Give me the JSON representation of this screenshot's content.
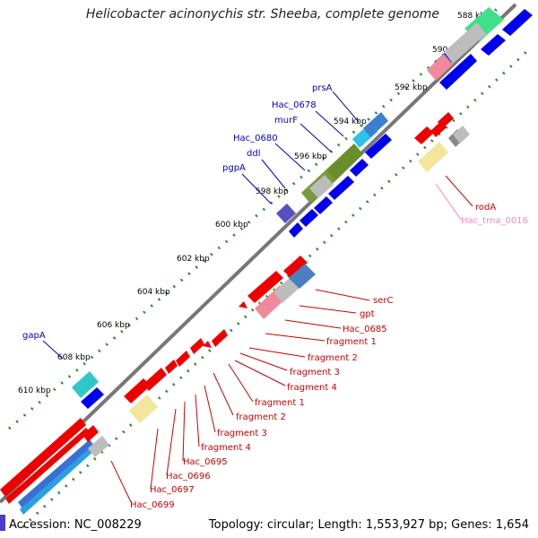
{
  "title": "Helicobacter acinonychis str. Sheeba, complete genome",
  "footer": {
    "accession": "Accession: NC_008229",
    "topology": "Topology: circular; Length: 1,553,927 bp; Genes: 1,654"
  },
  "ticks": [
    "588 kbp",
    "590 kbp",
    "592 kbp",
    "594 kbp",
    "596 kbp",
    "598 kbp",
    "600 kbp",
    "602 kbp",
    "604 kbp",
    "606 kbp",
    "608 kbp",
    "610 kbp"
  ],
  "forward_labels": [
    "prsA",
    "Hac_0678",
    "murF",
    "Hac_0680",
    "ddl",
    "pgpA",
    "gapA"
  ],
  "reverse_labels": [
    "serC",
    "gpt",
    "Hac_0685",
    "fragment 1",
    "fragment 2",
    "fragment 3",
    "fragment 4",
    "fragment 1",
    "fragment 2",
    "fragment 3",
    "fragment 4",
    "Hac_0695",
    "Hac_0696",
    "Hac_0697",
    "Hac_0699",
    "rodA",
    "Hac_trna_0016"
  ],
  "colors": {
    "forward_gene": "#0000ee",
    "reverse_gene": "#ee0000",
    "trna_label": "#ff88bb",
    "tick": "#2a8a2a",
    "backbone": "#888888"
  }
}
